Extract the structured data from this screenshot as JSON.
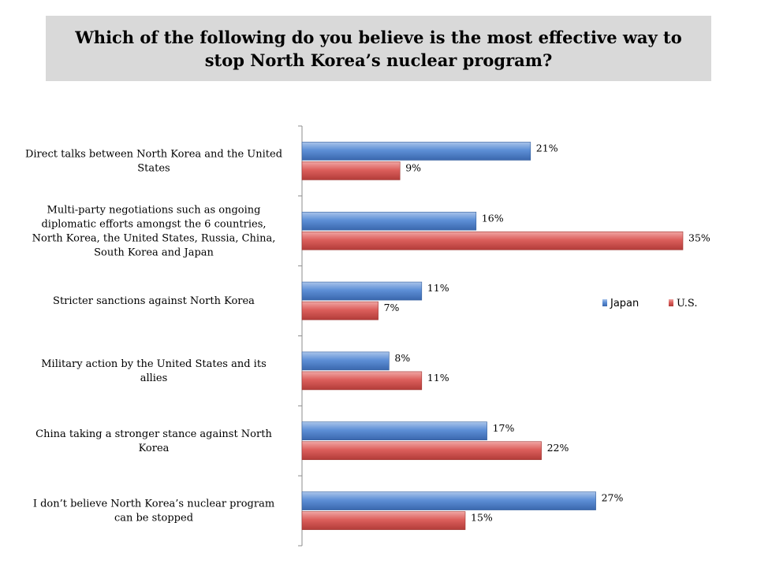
{
  "title": "Which of the following do you believe is the most effective way to stop North Korea’s nuclear program?",
  "chart_data": {
    "type": "bar",
    "orientation": "horizontal",
    "categories": [
      "Direct talks between North Korea and the United States",
      "Multi-party negotiations such as ongoing diplomatic efforts amongst the 6 countries, North Korea, the United States, Russia, China, South Korea and Japan",
      "Stricter sanctions against North Korea",
      "Military action by the United States and its allies",
      "China taking a stronger stance against North Korea",
      "I don’t believe North Korea’s nuclear program can be stopped"
    ],
    "series": [
      {
        "name": "Japan",
        "color": "#4f81bd",
        "values": [
          21,
          16,
          11,
          8,
          17,
          27
        ]
      },
      {
        "name": "U.S.",
        "color": "#c0504d",
        "values": [
          9,
          35,
          7,
          11,
          22,
          15
        ]
      }
    ],
    "value_suffix": "%",
    "xlim": [
      0,
      36
    ],
    "grid": false,
    "legend_position": "right"
  }
}
